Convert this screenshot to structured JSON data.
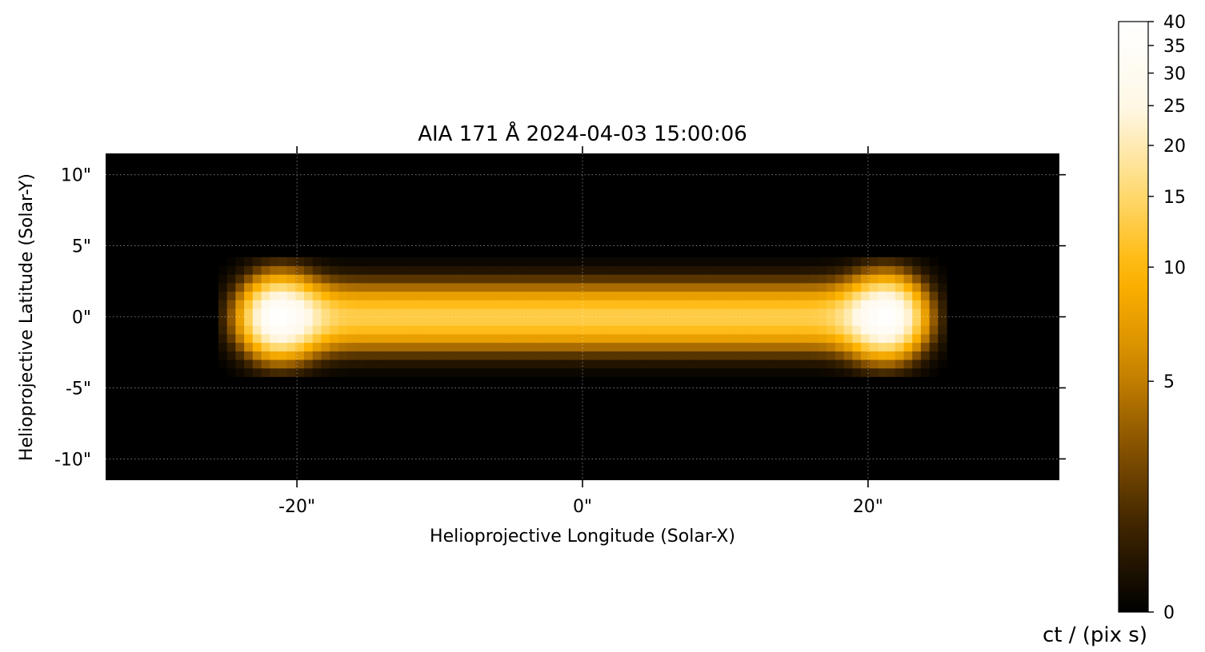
{
  "chart_data": {
    "type": "heatmap",
    "title": "AIA 171 Å 2024-04-03 15:00:06",
    "xlabel": "Helioprojective Longitude (Solar-X)",
    "ylabel": "Helioprojective Latitude (Solar-Y)",
    "xlim": [
      -33.4,
      33.4
    ],
    "ylim": [
      -11.5,
      11.5
    ],
    "x_ticks": [
      {
        "value": -20,
        "label": "-20\""
      },
      {
        "value": 0,
        "label": "0\""
      },
      {
        "value": 20,
        "label": "20\""
      }
    ],
    "y_ticks": [
      {
        "value": 10,
        "label": "10\""
      },
      {
        "value": 5,
        "label": "5\""
      },
      {
        "value": 0,
        "label": "0\""
      },
      {
        "value": -5,
        "label": "-5\""
      },
      {
        "value": -10,
        "label": "-10\""
      }
    ],
    "grid": true,
    "pixel_size_arcsec": 0.6,
    "colormap": "sdoaia171",
    "colormap_stops": [
      "#000000",
      "#3d2400",
      "#8a5400",
      "#d48c00",
      "#ffb400",
      "#ffdb75",
      "#fff8e8",
      "#ffffff"
    ],
    "loop": {
      "footpoints": [
        {
          "x": -21.2,
          "y": 0.0
        },
        {
          "x": 21.2,
          "y": 0.0
        }
      ],
      "axis_value": 13,
      "peak_value": 40,
      "width_sigma_arcsec": 1.4,
      "footpoint_sigma_arcsec": 1.6
    },
    "colorbar": {
      "label": "ct / (pix s)",
      "scale": "asinh",
      "vmin": 0,
      "vmax": 40,
      "ticks": [
        {
          "value": 0,
          "label": "0"
        },
        {
          "value": 5,
          "label": "5"
        },
        {
          "value": 10,
          "label": "10"
        },
        {
          "value": 15,
          "label": "15"
        },
        {
          "value": 20,
          "label": "20"
        },
        {
          "value": 25,
          "label": "25"
        },
        {
          "value": 30,
          "label": "30"
        },
        {
          "value": 35,
          "label": "35"
        },
        {
          "value": 40,
          "label": "40"
        }
      ]
    }
  }
}
